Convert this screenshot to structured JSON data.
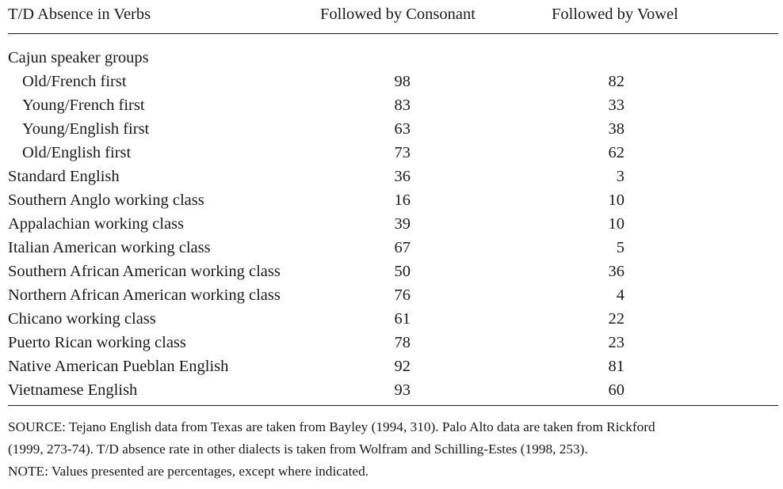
{
  "table": {
    "headers": [
      "T/D Absence in Verbs",
      "Followed by Consonant",
      "Followed by Vowel"
    ],
    "rows": [
      {
        "label": "Cajun speaker groups",
        "consonant": "",
        "vowel": ""
      },
      {
        "label": "Old/French first",
        "consonant": "98",
        "vowel": "82"
      },
      {
        "label": "Young/French first",
        "consonant": "83",
        "vowel": "33"
      },
      {
        "label": "Young/English first",
        "consonant": "63",
        "vowel": "38"
      },
      {
        "label": "Old/English first",
        "consonant": "73",
        "vowel": "62"
      },
      {
        "label": "Standard English",
        "consonant": "36",
        "vowel": "3"
      },
      {
        "label": "Southern Anglo working class",
        "consonant": "16",
        "vowel": "10"
      },
      {
        "label": "Appalachian working class",
        "consonant": "39",
        "vowel": "10"
      },
      {
        "label": "Italian American working class",
        "consonant": "67",
        "vowel": "5"
      },
      {
        "label": "Southern African American working class",
        "consonant": "50",
        "vowel": "36"
      },
      {
        "label": "Northern African American working class",
        "consonant": "76",
        "vowel": "4"
      },
      {
        "label": "Chicano working class",
        "consonant": "61",
        "vowel": "22"
      },
      {
        "label": "Puerto Rican working class",
        "consonant": "78",
        "vowel": "23"
      },
      {
        "label": "Native American Pueblan English",
        "consonant": "92",
        "vowel": "81"
      },
      {
        "label": "Vietnamese English",
        "consonant": "93",
        "vowel": "60"
      }
    ]
  },
  "notes": {
    "source_line1": "SOURCE: Tejano English data from Texas are taken from Bayley (1994, 310). Palo Alto data are taken from Rickford",
    "source_line2": "(1999, 273-74). T/D absence rate in other dialects is taken from Wolfram and Schilling-Estes (1998, 253).",
    "note": "NOTE: Values presented are percentages, except where indicated."
  }
}
